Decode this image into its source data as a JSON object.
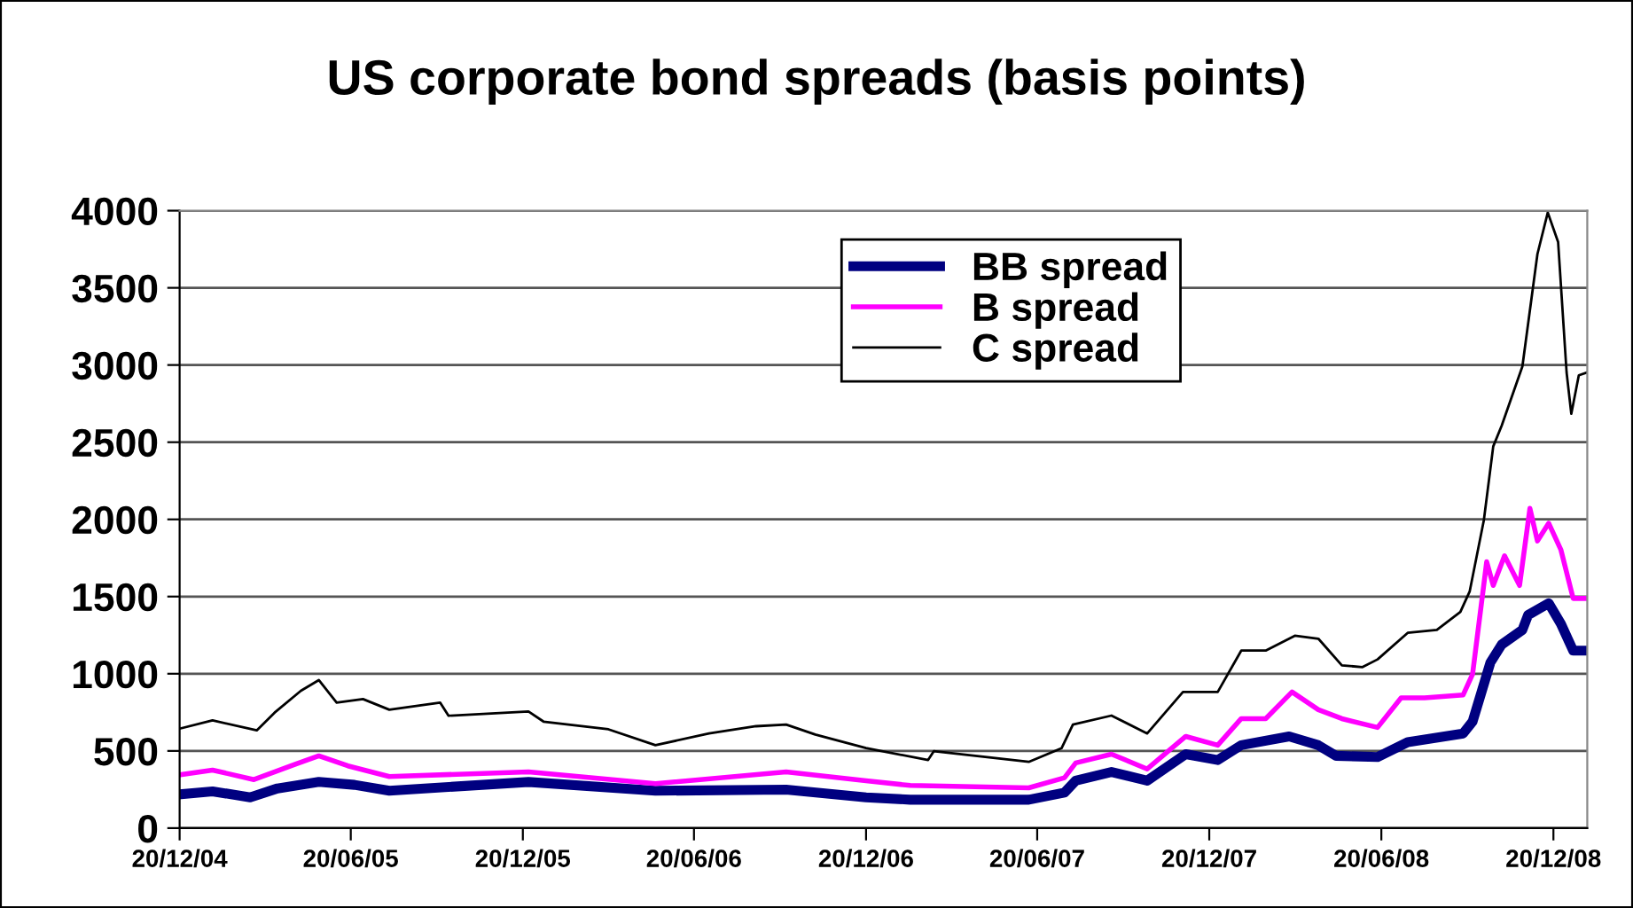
{
  "chart_data": {
    "type": "line",
    "title": "US corporate bond spreads (basis points)",
    "xlim": [
      "2004-12-20",
      "2009-01-25"
    ],
    "xticks": [
      {
        "value": "2004-12-20",
        "label": "20/12/04"
      },
      {
        "value": "2005-06-20",
        "label": "20/06/05"
      },
      {
        "value": "2005-12-20",
        "label": "20/12/05"
      },
      {
        "value": "2006-06-20",
        "label": "20/06/06"
      },
      {
        "value": "2006-12-20",
        "label": "20/12/06"
      },
      {
        "value": "2007-06-20",
        "label": "20/06/07"
      },
      {
        "value": "2007-12-20",
        "label": "20/12/07"
      },
      {
        "value": "2008-06-20",
        "label": "20/06/08"
      },
      {
        "value": "2008-12-20",
        "label": "20/12/08"
      }
    ],
    "ylim": [
      0,
      4000
    ],
    "yticks": [
      0,
      500,
      1000,
      1500,
      2000,
      2500,
      3000,
      3500,
      4000
    ],
    "grid": "y",
    "legend": "top right",
    "marker": "none",
    "line_style": "solid",
    "series": [
      {
        "name": "BB spread",
        "color": "#000080",
        "x": [
          "2004-12-20",
          "2005-01-24",
          "2005-03-05",
          "2005-04-03",
          "2005-05-17",
          "2005-06-24",
          "2005-07-31",
          "2005-12-26",
          "2006-05-10",
          "2006-09-26",
          "2006-12-20",
          "2007-02-05",
          "2007-06-11",
          "2007-07-19",
          "2007-07-31",
          "2007-09-07",
          "2007-10-15",
          "2007-11-25",
          "2007-12-29",
          "2008-01-23",
          "2008-03-14",
          "2008-04-14",
          "2008-05-03",
          "2008-06-16",
          "2008-07-18",
          "2008-09-15",
          "2008-09-25",
          "2008-10-14",
          "2008-10-26",
          "2008-11-17",
          "2008-11-23",
          "2008-12-15",
          "2008-12-28",
          "2009-01-10",
          "2009-01-25"
        ],
        "values": [
          219,
          238,
          199,
          257,
          299,
          280,
          242,
          299,
          242,
          249,
          199,
          184,
          184,
          230,
          307,
          364,
          307,
          479,
          441,
          537,
          594,
          537,
          468,
          460,
          556,
          613,
          690,
          1073,
          1189,
          1284,
          1380,
          1457,
          1323,
          1150,
          1150
        ]
      },
      {
        "name": "B spread",
        "color": "#ff00ff",
        "x": [
          "2004-12-20",
          "2005-01-24",
          "2005-03-09",
          "2005-04-22",
          "2005-05-17",
          "2005-06-17",
          "2005-07-31",
          "2005-12-26",
          "2006-05-10",
          "2006-09-26",
          "2006-12-20",
          "2007-02-05",
          "2007-06-11",
          "2007-07-19",
          "2007-07-31",
          "2007-09-07",
          "2007-10-15",
          "2007-11-25",
          "2007-12-29",
          "2008-01-23",
          "2008-02-18",
          "2008-03-17",
          "2008-04-14",
          "2008-05-09",
          "2008-06-16",
          "2008-07-11",
          "2008-08-05",
          "2008-09-15",
          "2008-09-25",
          "2008-10-10",
          "2008-10-17",
          "2008-10-29",
          "2008-11-14",
          "2008-11-25",
          "2008-12-03",
          "2008-12-15",
          "2008-12-28",
          "2009-01-10",
          "2009-01-25"
        ],
        "values": [
          345,
          376,
          314,
          414,
          468,
          403,
          334,
          364,
          288,
          364,
          307,
          276,
          261,
          326,
          422,
          479,
          383,
          594,
          537,
          709,
          709,
          882,
          767,
          709,
          652,
          844,
          844,
          863,
          997,
          1725,
          1572,
          1764,
          1572,
          2071,
          1860,
          1975,
          1802,
          1488,
          1488
        ]
      },
      {
        "name": "C spread",
        "color": "#000000",
        "x": [
          "2004-12-20",
          "2005-01-24",
          "2005-03-12",
          "2005-03-31",
          "2005-04-28",
          "2005-05-17",
          "2005-06-05",
          "2005-07-03",
          "2005-07-31",
          "2005-09-23",
          "2005-10-02",
          "2005-12-26",
          "2006-01-11",
          "2006-03-21",
          "2006-05-10",
          "2006-07-06",
          "2006-08-25",
          "2006-09-26",
          "2006-10-27",
          "2006-12-20",
          "2007-02-24",
          "2007-03-02",
          "2007-06-11",
          "2007-07-16",
          "2007-07-28",
          "2007-09-07",
          "2007-10-15",
          "2007-11-22",
          "2007-12-29",
          "2008-01-23",
          "2008-02-18",
          "2008-03-20",
          "2008-04-14",
          "2008-05-09",
          "2008-05-31",
          "2008-06-16",
          "2008-07-18",
          "2008-08-18",
          "2008-09-12",
          "2008-09-22",
          "2008-10-07",
          "2008-10-17",
          "2008-10-26",
          "2008-11-17",
          "2008-12-03",
          "2008-12-14",
          "2008-12-25",
          "2009-01-03",
          "2009-01-08",
          "2009-01-16",
          "2009-01-25"
        ],
        "values": [
          644,
          698,
          633,
          748,
          890,
          959,
          813,
          836,
          767,
          813,
          728,
          755,
          690,
          640,
          537,
          613,
          660,
          671,
          606,
          518,
          441,
          498,
          429,
          518,
          671,
          729,
          613,
          882,
          882,
          1150,
          1150,
          1246,
          1227,
          1054,
          1043,
          1093,
          1265,
          1284,
          1400,
          1534,
          1994,
          2473,
          2607,
          2991,
          3719,
          3988,
          3796,
          2952,
          2684,
          2933,
          2952
        ]
      }
    ]
  }
}
